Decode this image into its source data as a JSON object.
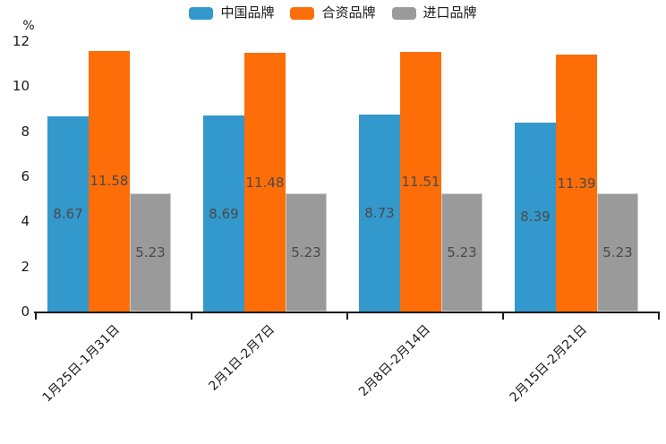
{
  "chart_data": {
    "type": "bar",
    "title": "",
    "unit_label": "%",
    "categories": [
      "1月25日-1月31日",
      "2月1日-2月7日",
      "2月8日-2月14日",
      "2月15日-2月21日"
    ],
    "series": [
      {
        "name": "中国品牌",
        "color": "#3398cb",
        "values": [
          8.67,
          8.69,
          8.73,
          8.39
        ]
      },
      {
        "name": "合资品牌",
        "color": "#fd6e08",
        "values": [
          11.58,
          11.48,
          11.51,
          11.39
        ]
      },
      {
        "name": "进口品牌",
        "color": "#9a9a9a",
        "edge_color": "#cdcdcd",
        "values": [
          5.23,
          5.23,
          5.23,
          5.23
        ]
      }
    ],
    "bar_labels": [
      [
        "8.67",
        "8.69",
        "8.73",
        "8.39"
      ],
      [
        "11.58",
        "11.48",
        "11.51",
        "11.39"
      ],
      [
        "5.23",
        "5.23",
        "5.23",
        "5.23"
      ]
    ],
    "y_ticks": [
      "0",
      "2",
      "4",
      "6",
      "8",
      "10",
      "12"
    ],
    "ylim": [
      0,
      12
    ],
    "grid": false,
    "legend_position": "top",
    "xlabel": "",
    "ylabel": "%",
    "colors": {
      "axis": "#1a1a1a",
      "bar_label_text": "#4a4a4a",
      "tick_label_text": "#1a1a1a",
      "background": "#ffffff"
    }
  }
}
